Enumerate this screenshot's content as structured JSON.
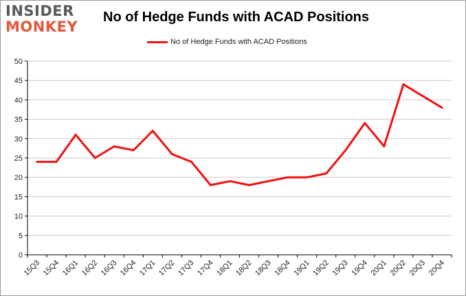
{
  "brand": {
    "top": "INSIDER",
    "bottom": "MONKEY"
  },
  "colors": {
    "series": "#ee1111",
    "grid": "#c8c8c8",
    "axis": "#000000",
    "logo_gray": "#555a5d",
    "logo_orange": "#e4573a"
  },
  "chart_data": {
    "type": "line",
    "title": "No of Hedge Funds with ACAD Positions",
    "xlabel": "",
    "ylabel": "",
    "categories": [
      "15Q3",
      "15Q4",
      "16Q1",
      "16Q2",
      "16Q3",
      "16Q4",
      "17Q1",
      "17Q2",
      "17Q3",
      "17Q4",
      "18Q1",
      "18Q2",
      "18Q3",
      "18Q4",
      "19Q1",
      "19Q2",
      "19Q3",
      "19Q4",
      "20Q1",
      "20Q2",
      "20Q3",
      "20Q4"
    ],
    "series": [
      {
        "name": "No of Hedge Funds with ACAD Positions",
        "values": [
          24,
          24,
          31,
          25,
          28,
          27,
          32,
          26,
          24,
          18,
          19,
          18,
          19,
          20,
          20,
          21,
          27,
          34,
          28,
          44,
          41,
          38
        ]
      }
    ],
    "ylim": [
      0,
      50
    ],
    "yticks": [
      0,
      5,
      10,
      15,
      20,
      25,
      30,
      35,
      40,
      45,
      50
    ],
    "grid": true,
    "legend": "top-center"
  }
}
